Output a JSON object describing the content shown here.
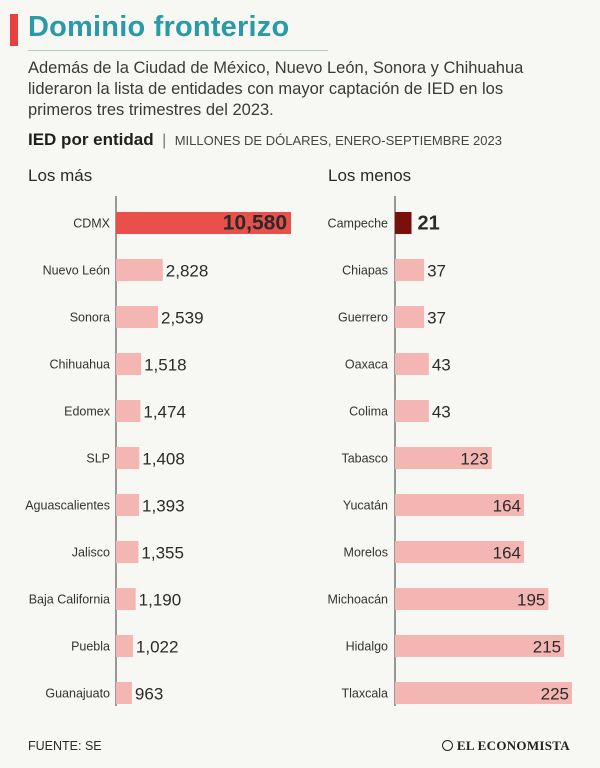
{
  "header": {
    "title": "Dominio fronterizo",
    "intro": "Además de la Ciudad de México, Nuevo León, Sonora y Chihuahua lideraron la lista de entidades con mayor captación de IED en los primeros tres trimestres del 2023.",
    "subtitle_bold": "IED por entidad",
    "subtitle_separator": "|",
    "subtitle_units": "MILLONES DE DÓLARES, ENERO-SEPTIEMBRE 2023"
  },
  "footer": {
    "source": "FUENTE: SE",
    "brand": "EL ECONOMISTA"
  },
  "colors": {
    "accent_red": "#e8403e",
    "title_teal": "#2a9aa6",
    "bar_light": "#f4b6b3",
    "bar_highlight_left": "#e9504c",
    "bar_highlight_right": "#7a0f0c"
  },
  "chart_data": [
    {
      "type": "bar",
      "orientation": "horizontal",
      "title": "Los más",
      "categories": [
        "CDMX",
        "Nuevo León",
        "Sonora",
        "Chihuahua",
        "Edomex",
        "SLP",
        "Aguascalientes",
        "Jalisco",
        "Baja California",
        "Puebla",
        "Guanajuato"
      ],
      "values": [
        10580,
        2828,
        2539,
        1518,
        1474,
        1408,
        1393,
        1355,
        1190,
        1022,
        963
      ],
      "labels": [
        "10,580",
        "2,828",
        "2,539",
        "1,518",
        "1,474",
        "1,408",
        "1,393",
        "1,355",
        "1,190",
        "1,022",
        "963"
      ],
      "highlight_index": 0,
      "xlim": [
        0,
        10580
      ]
    },
    {
      "type": "bar",
      "orientation": "horizontal",
      "title": "Los menos",
      "categories": [
        "Campeche",
        "Chiapas",
        "Guerrero",
        "Oaxaca",
        "Colima",
        "Tabasco",
        "Yucatán",
        "Morelos",
        "Michoacán",
        "Hidalgo",
        "Tlaxcala"
      ],
      "values": [
        21,
        37,
        37,
        43,
        43,
        123,
        164,
        164,
        195,
        215,
        225
      ],
      "labels": [
        "21",
        "37",
        "37",
        "43",
        "43",
        "123",
        "164",
        "164",
        "195",
        "215",
        "225"
      ],
      "highlight_index": 0,
      "xlim": [
        0,
        225
      ]
    }
  ]
}
